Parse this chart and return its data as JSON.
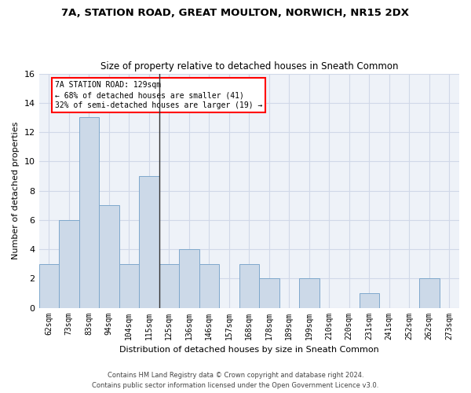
{
  "title1": "7A, STATION ROAD, GREAT MOULTON, NORWICH, NR15 2DX",
  "title2": "Size of property relative to detached houses in Sneath Common",
  "xlabel": "Distribution of detached houses by size in Sneath Common",
  "ylabel": "Number of detached properties",
  "categories": [
    "62sqm",
    "73sqm",
    "83sqm",
    "94sqm",
    "104sqm",
    "115sqm",
    "125sqm",
    "136sqm",
    "146sqm",
    "157sqm",
    "168sqm",
    "178sqm",
    "189sqm",
    "199sqm",
    "210sqm",
    "220sqm",
    "231sqm",
    "241sqm",
    "252sqm",
    "262sqm",
    "273sqm"
  ],
  "values": [
    3,
    6,
    13,
    7,
    3,
    9,
    3,
    4,
    3,
    0,
    3,
    2,
    0,
    2,
    0,
    0,
    1,
    0,
    0,
    2,
    0
  ],
  "bar_color": "#ccd9e8",
  "bar_edge_color": "#7fa8cc",
  "highlight_index": 6,
  "highlight_line_color": "#333333",
  "annotation_text": "7A STATION ROAD: 129sqm\n← 68% of detached houses are smaller (41)\n32% of semi-detached houses are larger (19) →",
  "annotation_box_color": "white",
  "annotation_box_edge_color": "red",
  "ylim": [
    0,
    16
  ],
  "yticks": [
    0,
    2,
    4,
    6,
    8,
    10,
    12,
    14,
    16
  ],
  "grid_color": "#d0d8e8",
  "background_color": "#eef2f8",
  "footer1": "Contains HM Land Registry data © Crown copyright and database right 2024.",
  "footer2": "Contains public sector information licensed under the Open Government Licence v3.0."
}
